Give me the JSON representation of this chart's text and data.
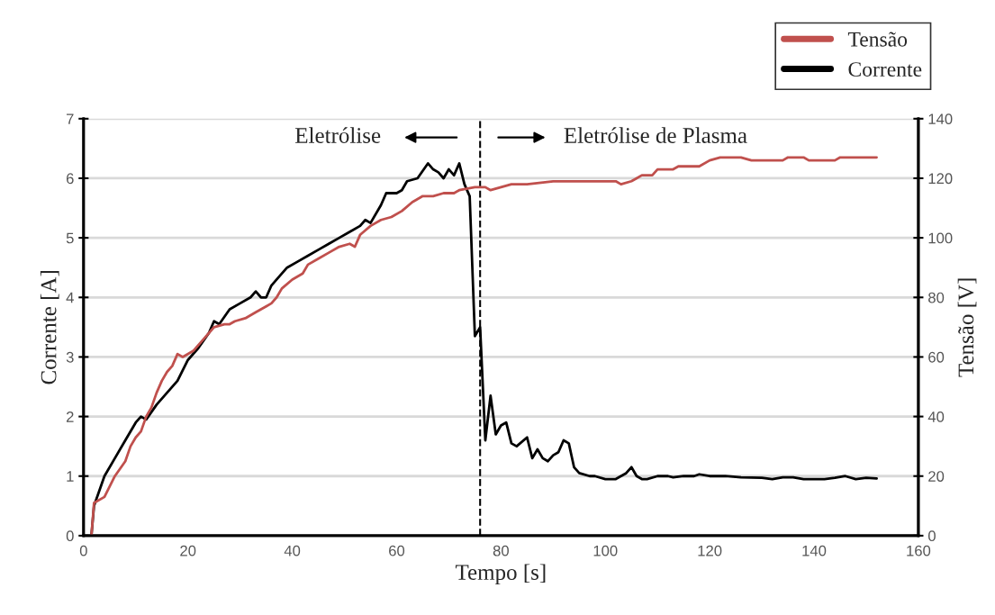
{
  "chart_data": {
    "type": "line",
    "xlabel": "Tempo [s]",
    "ylabel": "Corrente [A]",
    "y2label": "Tensão [V]",
    "xlim": [
      0,
      160
    ],
    "xticks": [
      0,
      20,
      40,
      60,
      80,
      100,
      120,
      140,
      160
    ],
    "ylim": [
      0,
      7
    ],
    "yticks": [
      0,
      1,
      2,
      3,
      4,
      5,
      6,
      7
    ],
    "y2lim": [
      0,
      140
    ],
    "y2ticks": [
      0,
      20,
      40,
      60,
      80,
      100,
      120,
      140
    ],
    "grid": "y",
    "legend": "top right",
    "line_style": "solid",
    "marker": "none",
    "ref_lines": [
      {
        "axis": "x",
        "value": 76,
        "color": "#000000",
        "line_style": "dashed"
      }
    ],
    "annotations": [
      "Eletrólise",
      "Eletrólise de Plasma"
    ],
    "series": [
      {
        "name": "Tensão",
        "color": "#c0504d",
        "axis": "y2",
        "x": [
          1.5,
          2,
          4,
          6,
          8,
          9,
          10,
          11,
          12,
          13,
          14,
          15,
          16,
          17,
          18,
          19,
          21,
          23,
          24,
          25,
          27,
          28,
          29,
          31,
          33,
          34,
          35,
          36,
          37,
          38,
          40,
          42,
          43,
          45,
          47,
          49,
          51,
          52,
          53,
          55,
          57,
          59,
          61,
          63,
          65,
          67,
          69,
          71,
          72,
          75,
          76,
          77,
          78,
          80,
          82,
          85,
          90,
          95,
          102,
          103,
          105,
          106,
          107,
          109,
          110,
          113,
          114,
          118,
          120,
          122,
          126,
          128,
          134,
          135,
          138,
          139,
          144,
          145,
          152
        ],
        "values": [
          0,
          11,
          13,
          20,
          25,
          30,
          33,
          35,
          40,
          43,
          48,
          52,
          55,
          57,
          61,
          60,
          62,
          66,
          68,
          70,
          71,
          71,
          72,
          73,
          75,
          76,
          77,
          78,
          80,
          83,
          86,
          88,
          91,
          93,
          95,
          97,
          98,
          97,
          101,
          104,
          106,
          107,
          109,
          112,
          114,
          114,
          115,
          115,
          116,
          117,
          117,
          117,
          116,
          117,
          118,
          118,
          119,
          119,
          119,
          118,
          119,
          120,
          121,
          121,
          123,
          123,
          124,
          124,
          126,
          127,
          127,
          126,
          126,
          127,
          127,
          126,
          126,
          127,
          127
        ]
      },
      {
        "name": "Corrente",
        "color": "#000000",
        "axis": "y",
        "x": [
          1.5,
          2,
          4,
          6,
          8,
          10,
          11,
          12,
          14,
          16,
          18,
          20,
          22,
          24,
          25,
          26,
          28,
          30,
          32,
          33,
          34,
          35,
          36,
          37,
          39,
          41,
          43,
          45,
          47,
          49,
          51,
          53,
          54,
          55,
          57,
          58,
          60,
          61,
          62,
          64,
          66,
          67,
          68,
          69,
          70,
          71,
          72,
          73,
          74,
          75,
          76,
          77,
          78,
          79,
          80,
          81,
          82,
          83,
          85,
          86,
          87,
          88,
          89,
          90,
          91,
          92,
          93,
          94,
          95,
          97,
          98,
          100,
          102,
          104,
          105,
          106,
          107,
          108,
          110,
          112,
          113,
          115,
          117,
          118,
          120,
          123,
          126,
          130,
          132,
          134,
          136,
          138,
          142,
          144,
          146,
          148,
          150,
          152
        ],
        "values": [
          0,
          0.5,
          1.0,
          1.3,
          1.6,
          1.9,
          2.0,
          1.95,
          2.2,
          2.4,
          2.6,
          2.95,
          3.15,
          3.4,
          3.6,
          3.55,
          3.8,
          3.9,
          4.0,
          4.1,
          4.0,
          4.0,
          4.2,
          4.3,
          4.5,
          4.6,
          4.7,
          4.8,
          4.9,
          5.0,
          5.1,
          5.2,
          5.3,
          5.25,
          5.55,
          5.75,
          5.75,
          5.8,
          5.95,
          6.0,
          6.25,
          6.15,
          6.1,
          6.0,
          6.15,
          6.05,
          6.25,
          5.9,
          5.7,
          3.35,
          3.5,
          1.6,
          2.35,
          1.7,
          1.85,
          1.9,
          1.55,
          1.5,
          1.65,
          1.3,
          1.45,
          1.3,
          1.25,
          1.35,
          1.4,
          1.6,
          1.55,
          1.15,
          1.05,
          1.0,
          1.0,
          0.95,
          0.95,
          1.05,
          1.15,
          1.0,
          0.95,
          0.95,
          1.0,
          1.0,
          0.98,
          1.0,
          1.0,
          1.03,
          1.0,
          1.0,
          0.98,
          0.97,
          0.95,
          0.98,
          0.98,
          0.95,
          0.95,
          0.97,
          1.0,
          0.95,
          0.97,
          0.96
        ]
      }
    ]
  }
}
